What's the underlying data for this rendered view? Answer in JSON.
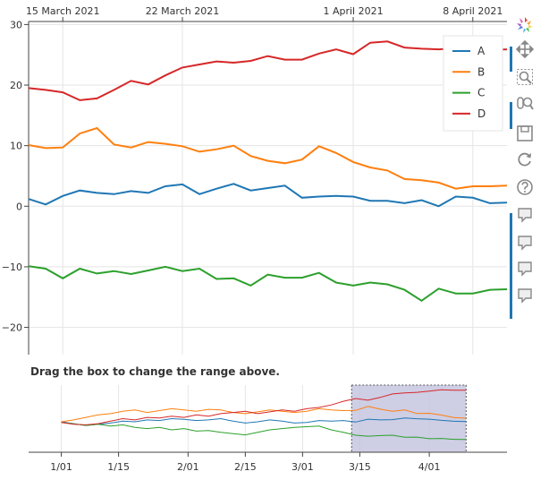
{
  "colors": {
    "A": "#1f77b4",
    "B": "#ff7f0e",
    "C": "#2ca02c",
    "D": "#d62728",
    "selection_fill": "#c6c6e0",
    "selection_border": "#555",
    "grid": "#e5e5e5",
    "axis": "#444",
    "toolbar_active": "#1f77b4"
  },
  "range_title": "Drag the box to change the range above.",
  "chart_data": [
    {
      "type": "line",
      "x_axis_labels": [
        "15 March 2021",
        "22 March 2021",
        "1 April 2021",
        "8 April 2021"
      ],
      "x_tick_dates": [
        "2021-03-15",
        "2021-03-22",
        "2021-04-01",
        "2021-04-08"
      ],
      "xlim": [
        "2021-03-13",
        "2021-04-10"
      ],
      "ylim": [
        -24.5,
        30.5
      ],
      "y_ticks": [
        30,
        20,
        10,
        0,
        -10,
        -20
      ],
      "y_tick_labels": [
        "30",
        "20",
        "10",
        "0",
        "−10",
        "−20"
      ],
      "x_axis_position": "top",
      "grid": true,
      "legend_position": "top-right",
      "x": [
        "2021-03-13",
        "2021-03-14",
        "2021-03-15",
        "2021-03-16",
        "2021-03-17",
        "2021-03-18",
        "2021-03-19",
        "2021-03-20",
        "2021-03-21",
        "2021-03-22",
        "2021-03-23",
        "2021-03-24",
        "2021-03-25",
        "2021-03-26",
        "2021-03-27",
        "2021-03-28",
        "2021-03-29",
        "2021-03-30",
        "2021-03-31",
        "2021-04-01",
        "2021-04-02",
        "2021-04-03",
        "2021-04-04",
        "2021-04-05",
        "2021-04-06",
        "2021-04-07",
        "2021-04-08",
        "2021-04-09",
        "2021-04-10"
      ],
      "series": [
        {
          "name": "A",
          "values": [
            1.2,
            0.3,
            1.7,
            2.6,
            2.2,
            2.0,
            2.5,
            2.2,
            3.3,
            3.6,
            2.0,
            2.9,
            3.7,
            2.6,
            3.0,
            3.4,
            1.4,
            1.6,
            1.7,
            1.6,
            0.9,
            0.9,
            0.5,
            1.0,
            0.0,
            1.6,
            1.4,
            0.5,
            0.6
          ]
        },
        {
          "name": "B",
          "values": [
            10.1,
            9.6,
            9.7,
            12.0,
            12.9,
            10.2,
            9.7,
            10.6,
            10.3,
            9.9,
            9.0,
            9.4,
            10.0,
            8.3,
            7.5,
            7.1,
            7.7,
            9.9,
            8.8,
            7.3,
            6.4,
            5.9,
            4.5,
            4.3,
            3.9,
            2.9,
            3.3,
            3.3,
            3.4
          ]
        },
        {
          "name": "C",
          "values": [
            -9.9,
            -10.3,
            -11.9,
            -10.3,
            -11.1,
            -10.7,
            -11.2,
            -10.6,
            -10.0,
            -10.7,
            -10.3,
            -12.0,
            -11.9,
            -13.1,
            -11.3,
            -11.8,
            -11.8,
            -11.0,
            -12.6,
            -13.1,
            -12.6,
            -12.9,
            -13.8,
            -15.6,
            -13.6,
            -14.4,
            -14.4,
            -13.8,
            -13.7
          ]
        },
        {
          "name": "D",
          "values": [
            19.5,
            19.2,
            18.8,
            17.5,
            17.8,
            19.2,
            20.7,
            20.1,
            21.6,
            22.9,
            23.4,
            23.9,
            23.7,
            24.0,
            24.8,
            24.2,
            24.2,
            25.2,
            25.9,
            25.1,
            27.0,
            27.2,
            26.2,
            26.0,
            25.9,
            26.1,
            26.0,
            25.8,
            25.9
          ]
        }
      ]
    },
    {
      "type": "line",
      "x_axis_labels": [
        "1/01",
        "1/15",
        "2/01",
        "2/15",
        "3/01",
        "3/15",
        "4/01"
      ],
      "x_tick_dates": [
        "2021-01-01",
        "2021-01-15",
        "2021-02-01",
        "2021-02-15",
        "2021-03-01",
        "2021-03-15",
        "2021-04-01"
      ],
      "xlim": [
        "2020-12-24",
        "2021-04-20"
      ],
      "ylim": [
        -24,
        30
      ],
      "x_axis_position": "bottom",
      "selection_range": [
        "2021-03-13",
        "2021-04-10"
      ],
      "series": [
        {
          "name": "A",
          "x": [
            "2021-01-01",
            "2021-01-04",
            "2021-01-07",
            "2021-01-10",
            "2021-01-13",
            "2021-01-16",
            "2021-01-19",
            "2021-01-22",
            "2021-01-25",
            "2021-01-28",
            "2021-01-31",
            "2021-02-03",
            "2021-02-06",
            "2021-02-09",
            "2021-02-12",
            "2021-02-15",
            "2021-02-18",
            "2021-02-21",
            "2021-02-24",
            "2021-02-27",
            "2021-03-02",
            "2021-03-05",
            "2021-03-08",
            "2021-03-11",
            "2021-03-14",
            "2021-03-17",
            "2021-03-20",
            "2021-03-23",
            "2021-03-26",
            "2021-03-29",
            "2021-04-01",
            "2021-04-04",
            "2021-04-07",
            "2021-04-10"
          ],
          "values": [
            0.5,
            -1.0,
            -2.5,
            -1.5,
            -0.5,
            1.0,
            0.5,
            2.0,
            1.5,
            3.0,
            2.5,
            1.5,
            2.0,
            3.0,
            1.0,
            -0.5,
            0.5,
            2.0,
            1.0,
            -0.5,
            0.0,
            1.5,
            1.0,
            1.5,
            0.3,
            2.6,
            2.0,
            2.2,
            3.6,
            2.9,
            2.6,
            1.6,
            0.9,
            0.6
          ]
        },
        {
          "name": "B",
          "x": [
            "2021-01-01",
            "2021-01-04",
            "2021-01-07",
            "2021-01-10",
            "2021-01-13",
            "2021-01-16",
            "2021-01-19",
            "2021-01-22",
            "2021-01-25",
            "2021-01-28",
            "2021-01-31",
            "2021-02-03",
            "2021-02-06",
            "2021-02-09",
            "2021-02-12",
            "2021-02-15",
            "2021-02-18",
            "2021-02-21",
            "2021-02-24",
            "2021-02-27",
            "2021-03-02",
            "2021-03-05",
            "2021-03-08",
            "2021-03-11",
            "2021-03-14",
            "2021-03-17",
            "2021-03-20",
            "2021-03-23",
            "2021-03-26",
            "2021-03-29",
            "2021-04-01",
            "2021-04-04",
            "2021-04-07",
            "2021-04-10"
          ],
          "values": [
            0.5,
            2.0,
            4.0,
            6.0,
            7.0,
            9.0,
            10.0,
            8.0,
            9.5,
            11.0,
            10.0,
            9.0,
            10.5,
            10.0,
            8.0,
            7.0,
            8.5,
            10.0,
            9.0,
            8.0,
            9.0,
            11.0,
            10.0,
            9.5,
            9.6,
            12.9,
            10.6,
            9.0,
            10.0,
            7.1,
            7.3,
            5.9,
            3.9,
            3.4
          ]
        },
        {
          "name": "C",
          "x": [
            "2021-01-01",
            "2021-01-04",
            "2021-01-07",
            "2021-01-10",
            "2021-01-13",
            "2021-01-16",
            "2021-01-19",
            "2021-01-22",
            "2021-01-25",
            "2021-01-28",
            "2021-01-31",
            "2021-02-03",
            "2021-02-06",
            "2021-02-09",
            "2021-02-12",
            "2021-02-15",
            "2021-02-18",
            "2021-02-21",
            "2021-02-24",
            "2021-02-27",
            "2021-03-02",
            "2021-03-05",
            "2021-03-08",
            "2021-03-11",
            "2021-03-14",
            "2021-03-17",
            "2021-03-20",
            "2021-03-23",
            "2021-03-26",
            "2021-03-29",
            "2021-04-01",
            "2021-04-04",
            "2021-04-07",
            "2021-04-10"
          ],
          "values": [
            0.0,
            -1.0,
            -2.5,
            -1.5,
            -3.0,
            -2.0,
            -4.0,
            -5.0,
            -4.0,
            -6.0,
            -5.0,
            -7.0,
            -6.5,
            -8.0,
            -9.0,
            -10.0,
            -8.0,
            -6.0,
            -5.0,
            -4.0,
            -3.5,
            -3.0,
            -6.0,
            -8.0,
            -10.3,
            -11.1,
            -10.6,
            -10.3,
            -11.9,
            -11.8,
            -13.1,
            -12.9,
            -13.6,
            -13.7
          ]
        },
        {
          "name": "D",
          "x": [
            "2021-01-01",
            "2021-01-04",
            "2021-01-07",
            "2021-01-10",
            "2021-01-13",
            "2021-01-16",
            "2021-01-19",
            "2021-01-22",
            "2021-01-25",
            "2021-01-28",
            "2021-01-31",
            "2021-02-03",
            "2021-02-06",
            "2021-02-09",
            "2021-02-12",
            "2021-02-15",
            "2021-02-18",
            "2021-02-21",
            "2021-02-24",
            "2021-02-27",
            "2021-03-02",
            "2021-03-05",
            "2021-03-08",
            "2021-03-11",
            "2021-03-14",
            "2021-03-17",
            "2021-03-20",
            "2021-03-23",
            "2021-03-26",
            "2021-03-29",
            "2021-04-01",
            "2021-04-04",
            "2021-04-07",
            "2021-04-10"
          ],
          "values": [
            0.0,
            -1.5,
            -2.0,
            -1.0,
            1.0,
            3.0,
            2.0,
            4.0,
            3.5,
            5.0,
            4.0,
            6.0,
            5.0,
            7.0,
            8.0,
            9.0,
            7.0,
            8.5,
            10.0,
            9.0,
            11.0,
            12.0,
            14.0,
            17.0,
            19.2,
            17.8,
            20.1,
            22.9,
            23.7,
            24.2,
            25.1,
            26.2,
            25.9,
            25.9
          ]
        }
      ]
    }
  ],
  "toolbar": [
    {
      "name": "bokeh-logo",
      "icon": "bokeh-logo-icon",
      "active": false
    },
    {
      "name": "pan-tool",
      "icon": "pan-icon",
      "active": true
    },
    {
      "name": "box-zoom-tool",
      "icon": "box-zoom-icon",
      "active": false
    },
    {
      "name": "wheel-zoom-tool",
      "icon": "wheel-zoom-icon",
      "active": true
    },
    {
      "name": "save-tool",
      "icon": "save-icon",
      "active": false
    },
    {
      "name": "reset-tool",
      "icon": "reset-icon",
      "active": false
    },
    {
      "name": "help-tool",
      "icon": "help-icon",
      "active": false
    },
    {
      "name": "hover-tool-a",
      "icon": "hover-icon",
      "active": true
    },
    {
      "name": "hover-tool-b",
      "icon": "hover-icon",
      "active": true
    },
    {
      "name": "hover-tool-c",
      "icon": "hover-icon",
      "active": true
    },
    {
      "name": "hover-tool-d",
      "icon": "hover-icon",
      "active": true
    }
  ]
}
